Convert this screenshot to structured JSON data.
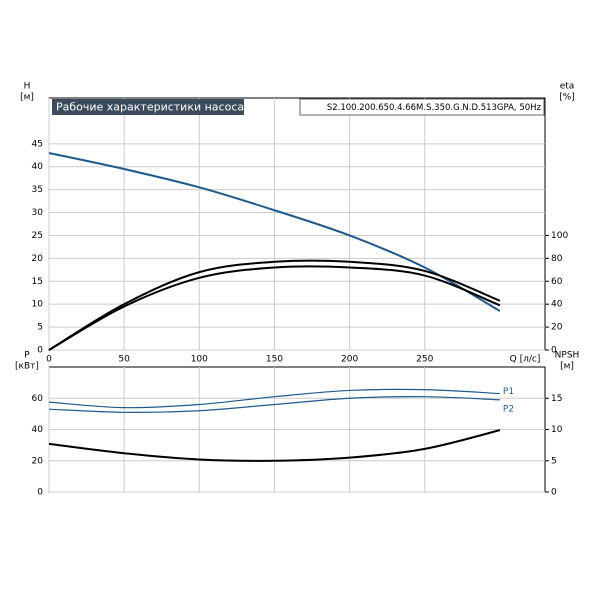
{
  "chart_data": [
    {
      "type": "line",
      "title": "Рабочие характеристики насоса",
      "subtitle": "S2.100.200.650.4.66M.S.350.G.N.D.513GPA, 50Hz",
      "ylabel": "H",
      "yunit": "[м]",
      "y2label": "eta",
      "y2unit": "[%]",
      "xlabel": "Q [л/с]",
      "x": [
        0,
        50,
        100,
        150,
        200,
        250,
        300
      ],
      "xlim": [
        0,
        330
      ],
      "xticks": [
        0,
        50,
        100,
        150,
        200,
        250
      ],
      "ylim": [
        0,
        55
      ],
      "yticks": [
        0,
        5,
        10,
        15,
        20,
        25,
        30,
        35,
        40,
        45
      ],
      "y2lim": [
        0,
        220
      ],
      "y2ticks": [
        0,
        20,
        40,
        60,
        80,
        100
      ],
      "grid": true,
      "series": [
        {
          "color": "#1f5a8c",
          "values": [
            43,
            39.5,
            35.5,
            30.5,
            25,
            18,
            8.5
          ]
        },
        {
          "color": "#000000",
          "axis": "y2",
          "values": [
            0,
            40,
            68,
            77,
            77,
            69,
            43
          ]
        },
        {
          "color": "#000000",
          "axis": "y2",
          "values": [
            0,
            38,
            63,
            72,
            72,
            65,
            39
          ]
        }
      ]
    },
    {
      "type": "line",
      "ylabel": "P",
      "yunit": "[кВт]",
      "y2label": "NPSH",
      "y2unit": "[м]",
      "x": [
        0,
        50,
        100,
        150,
        200,
        250,
        300
      ],
      "xlim": [
        0,
        330
      ],
      "xticks": [
        0,
        50,
        100,
        150,
        200,
        250
      ],
      "ylim": [
        0,
        80
      ],
      "yticks": [
        0,
        20,
        40,
        60
      ],
      "y2lim": [
        0,
        20
      ],
      "y2ticks": [
        0,
        5,
        10,
        15
      ],
      "grid": true,
      "series": [
        {
          "name": "P1",
          "color": "#1f5a8c",
          "values": [
            57.5,
            54,
            56,
            61,
            65,
            65.5,
            63
          ]
        },
        {
          "name": "P2",
          "color": "#1f5a8c",
          "values": [
            53,
            51,
            52,
            56,
            60,
            61,
            59
          ]
        },
        {
          "color": "#000000",
          "axis": "y2",
          "values": [
            7.7,
            6.2,
            5.2,
            5.0,
            5.5,
            6.9,
            9.9
          ]
        }
      ]
    }
  ]
}
